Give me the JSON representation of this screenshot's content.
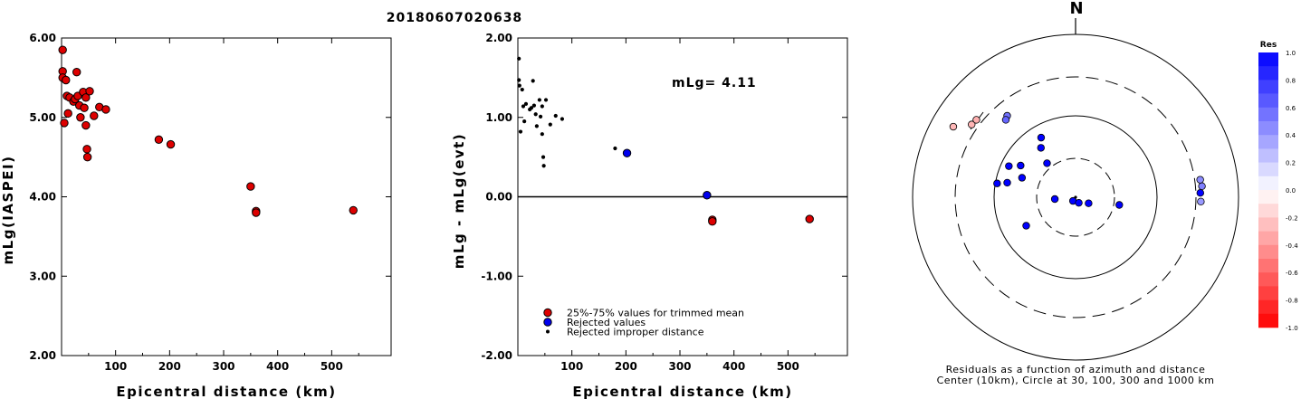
{
  "title": "20180607020638",
  "chart_data": [
    {
      "type": "scatter",
      "xlabel": "Epicentral distance (km)",
      "ylabel": "mLg(IASPEI)",
      "xlim": [
        0,
        610
      ],
      "ylim": [
        2.0,
        6.0
      ],
      "xticks": [
        "100",
        "200",
        "300",
        "400",
        "500"
      ],
      "yticks": [
        "2.00",
        "3.00",
        "4.00",
        "5.00",
        "6.00"
      ],
      "series": [
        {
          "marker": "red-circle",
          "points": [
            [
              2,
              5.85
            ],
            [
              2,
              5.58
            ],
            [
              2,
              5.5
            ],
            [
              5,
              4.93
            ],
            [
              8,
              5.47
            ],
            [
              10,
              5.27
            ],
            [
              12,
              5.05
            ],
            [
              15,
              5.25
            ],
            [
              22,
              5.2
            ],
            [
              25,
              5.23
            ],
            [
              28,
              5.57
            ],
            [
              30,
              5.27
            ],
            [
              33,
              5.15
            ],
            [
              35,
              5.0
            ],
            [
              40,
              5.32
            ],
            [
              42,
              5.12
            ],
            [
              45,
              5.25
            ],
            [
              45,
              4.9
            ],
            [
              47,
              4.6
            ],
            [
              48,
              4.5
            ],
            [
              52,
              5.33
            ],
            [
              60,
              5.02
            ],
            [
              70,
              5.13
            ],
            [
              82,
              5.1
            ],
            [
              180,
              4.72
            ],
            [
              202,
              4.66
            ],
            [
              350,
              4.13
            ],
            [
              360,
              3.82
            ],
            [
              360,
              3.8
            ],
            [
              540,
              3.83
            ]
          ]
        }
      ]
    },
    {
      "type": "scatter",
      "xlabel": "Epicentral distance (km)",
      "ylabel": "mLg - mLg(evt)",
      "xlim": [
        0,
        610
      ],
      "ylim": [
        -2.0,
        2.0
      ],
      "xticks": [
        "100",
        "200",
        "300",
        "400",
        "500"
      ],
      "yticks": [
        "-2.00",
        "-1.00",
        "0.00",
        "1.00",
        "2.00"
      ],
      "annotation": "mLg= 4.11",
      "legend": [
        "25%-75% values for trimmed mean",
        "Rejected values",
        "Rejected improper distance"
      ],
      "series": [
        {
          "name": "25%-75% values for trimmed mean",
          "marker": "red-circle",
          "points": [
            [
              360,
              -0.29
            ],
            [
              360,
              -0.31
            ],
            [
              540,
              -0.28
            ]
          ]
        },
        {
          "name": "Rejected values",
          "marker": "blue-circle",
          "points": [
            [
              202,
              0.55
            ],
            [
              350,
              0.02
            ]
          ]
        },
        {
          "name": "Rejected improper distance",
          "marker": "black-dot",
          "points": [
            [
              2,
              1.74
            ],
            [
              2,
              1.47
            ],
            [
              3,
              1.4
            ],
            [
              5,
              0.82
            ],
            [
              8,
              1.35
            ],
            [
              10,
              1.14
            ],
            [
              12,
              0.95
            ],
            [
              15,
              1.17
            ],
            [
              22,
              1.1
            ],
            [
              25,
              1.12
            ],
            [
              28,
              1.46
            ],
            [
              30,
              1.15
            ],
            [
              33,
              1.04
            ],
            [
              35,
              0.89
            ],
            [
              40,
              1.22
            ],
            [
              42,
              1.01
            ],
            [
              45,
              1.14
            ],
            [
              45,
              0.79
            ],
            [
              47,
              0.5
            ],
            [
              48,
              0.39
            ],
            [
              52,
              1.22
            ],
            [
              60,
              0.91
            ],
            [
              70,
              1.02
            ],
            [
              82,
              0.98
            ],
            [
              180,
              0.61
            ]
          ]
        }
      ]
    },
    {
      "type": "scatter",
      "subtype": "polar-residual-map",
      "north_label": "N",
      "caption_line1": "Residuals as a function of azimuth and distance",
      "caption_line2": "Center (10km), Circle at 30, 100, 300 and 1000 km",
      "rings_km": [
        30,
        100,
        300,
        1000
      ],
      "colorbar": {
        "title": "Res",
        "labels": [
          "1.0",
          "0.8",
          "0.6",
          "0.4",
          "0.2",
          "0.0",
          "-0.2",
          "-0.4",
          "-0.6",
          "-0.8",
          "-1.0"
        ],
        "max_color": "#0000ff",
        "min_color": "#ff0000"
      },
      "points": [
        {
          "az": 305,
          "dist_km": 360,
          "res": -0.29
        },
        {
          "az": 308,
          "dist_km": 350,
          "res": -0.31
        },
        {
          "az": 300,
          "dist_km": 540,
          "res": -0.28
        },
        {
          "az": 320,
          "dist_km": 202,
          "res": 0.55
        },
        {
          "az": 318,
          "dist_km": 190,
          "res": 0.6
        },
        {
          "az": 330,
          "dist_km": 70,
          "res": 1.0
        },
        {
          "az": 325,
          "dist_km": 55,
          "res": 1.0
        },
        {
          "az": 300,
          "dist_km": 60,
          "res": 1.0
        },
        {
          "az": 290,
          "dist_km": 50,
          "res": 1.0
        },
        {
          "az": 295,
          "dist_km": 80,
          "res": 1.0
        },
        {
          "az": 282,
          "dist_km": 72,
          "res": 1.0
        },
        {
          "az": 280,
          "dist_km": 95,
          "res": 1.0
        },
        {
          "az": 320,
          "dist_km": 35,
          "res": 1.0
        },
        {
          "az": 240,
          "dist_km": 50,
          "res": 1.0
        },
        {
          "az": 265,
          "dist_km": 18,
          "res": 1.0
        },
        {
          "az": 215,
          "dist_km": 10,
          "res": 1.0
        },
        {
          "az": 150,
          "dist_km": 12,
          "res": 1.0
        },
        {
          "az": 115,
          "dist_km": 15,
          "res": 1.0
        },
        {
          "az": 100,
          "dist_km": 35,
          "res": 1.0
        },
        {
          "az": 85,
          "dist_km": 360,
          "res": 0.5
        },
        {
          "az": 82,
          "dist_km": 350,
          "res": 0.45
        },
        {
          "az": 88,
          "dist_km": 340,
          "res": 1.0
        },
        {
          "az": 92,
          "dist_km": 345,
          "res": 0.4
        }
      ]
    }
  ]
}
